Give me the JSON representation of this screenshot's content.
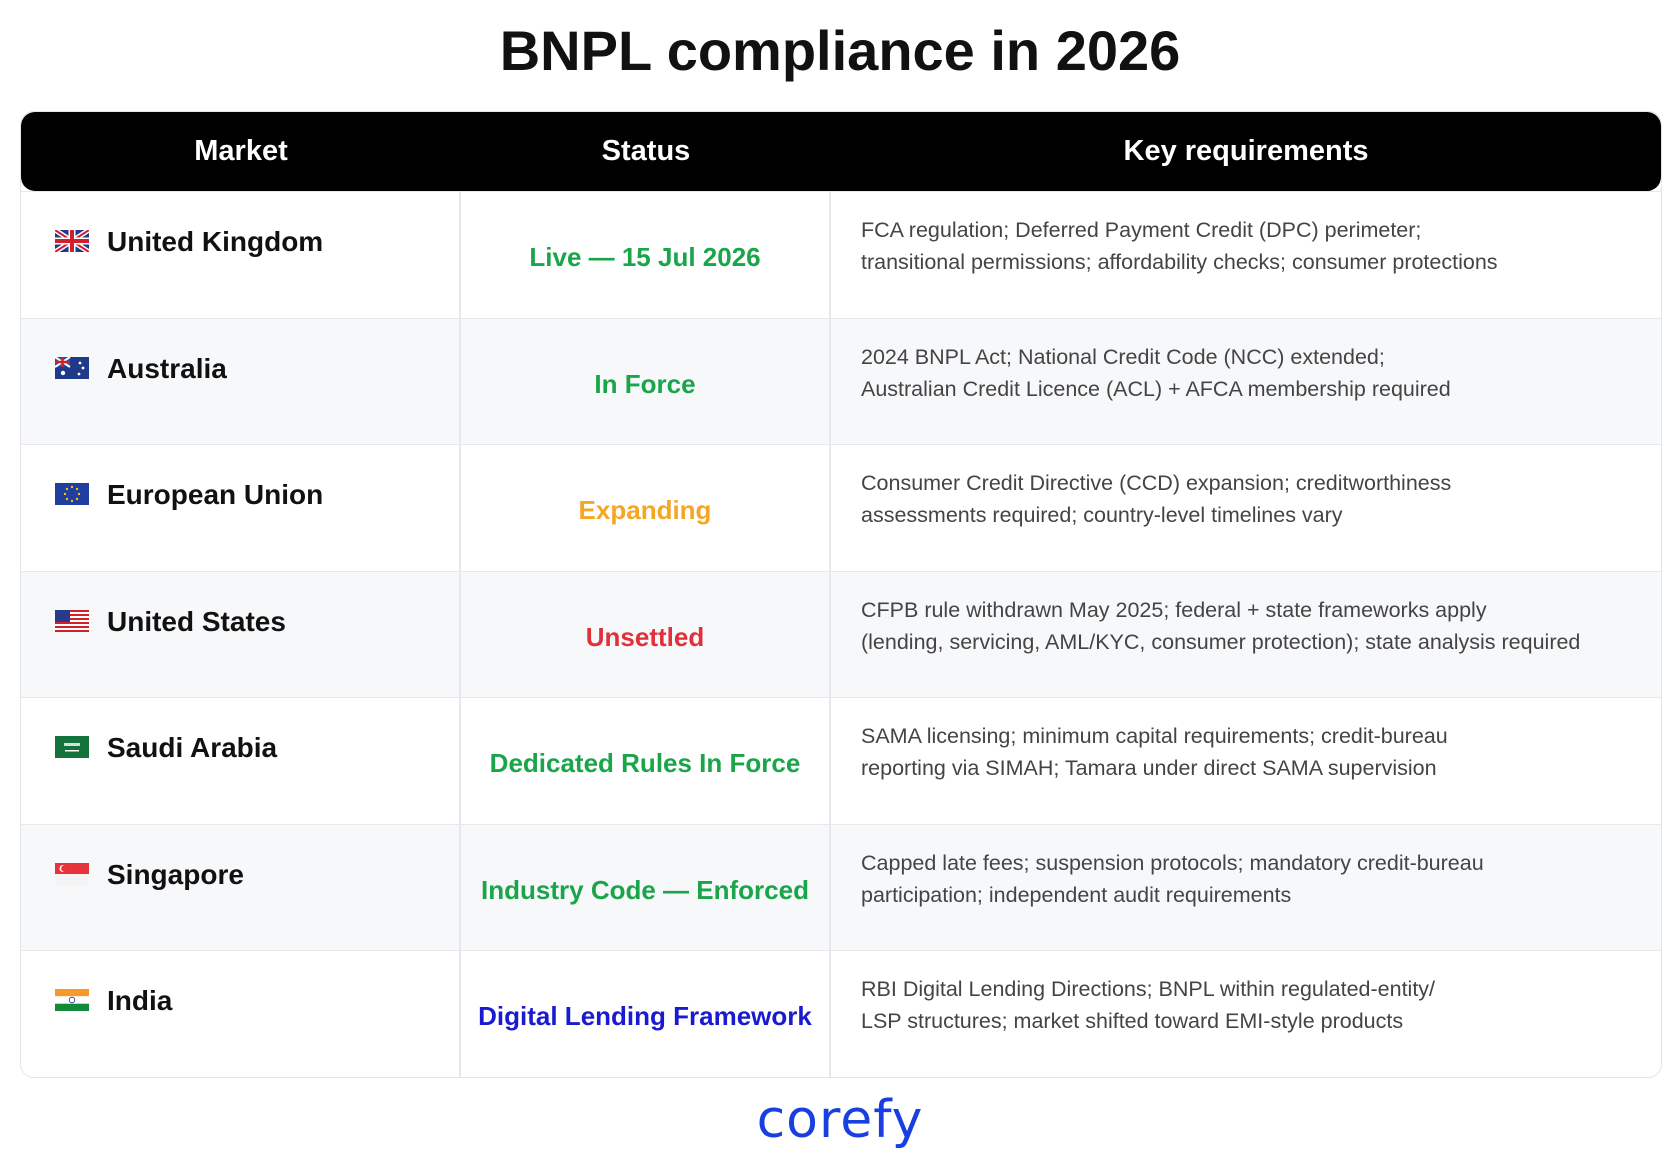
{
  "title": "BNPL compliance in 2026",
  "table": {
    "columns": [
      "Market",
      "Status",
      "Key requirements"
    ],
    "rows": [
      {
        "market": "United Kingdom",
        "status": "Live — 15 Jul 2026",
        "status_color": "#1aa54a",
        "requirements": [
          "FCA regulation; Deferred Payment Credit (DPC) perimeter;",
          "transitional permissions; affordability checks; consumer protections"
        ]
      },
      {
        "market": "Australia",
        "status": "In Force",
        "status_color": "#1aa54a",
        "requirements": [
          "2024 BNPL Act; National Credit Code (NCC) extended;",
          "Australian Credit Licence (ACL) + AFCA membership required"
        ]
      },
      {
        "market": "European Union",
        "status": "Expanding",
        "status_color": "#f5a623",
        "requirements": [
          "Consumer Credit Directive (CCD) expansion; creditworthiness",
          "assessments required; country-level timelines vary"
        ]
      },
      {
        "market": "United States",
        "status": "Unsettled",
        "status_color": "#e0303a",
        "requirements": [
          "CFPB rule withdrawn May 2025; federal + state frameworks apply",
          "(lending, servicing, AML/KYC, consumer protection); state analysis required"
        ]
      },
      {
        "market": "Saudi Arabia",
        "status": "Dedicated Rules In Force",
        "status_color": "#1aa54a",
        "requirements": [
          "SAMA licensing; minimum capital requirements; credit-bureau",
          "reporting via SIMAH; Tamara under direct SAMA supervision"
        ]
      },
      {
        "market": "Singapore",
        "status": "Industry Code — Enforced",
        "status_color": "#1aa54a",
        "requirements": [
          "Capped late fees; suspension protocols; mandatory credit-bureau",
          "participation; independent audit requirements"
        ]
      },
      {
        "market": "India",
        "status": "Digital Lending Framework",
        "status_color": "#1a1ad0",
        "requirements": [
          "RBI Digital Lending Directions; BNPL within regulated-entity/",
          "LSP structures; market shifted toward EMI-style products"
        ]
      }
    ]
  },
  "logo": "corefy"
}
